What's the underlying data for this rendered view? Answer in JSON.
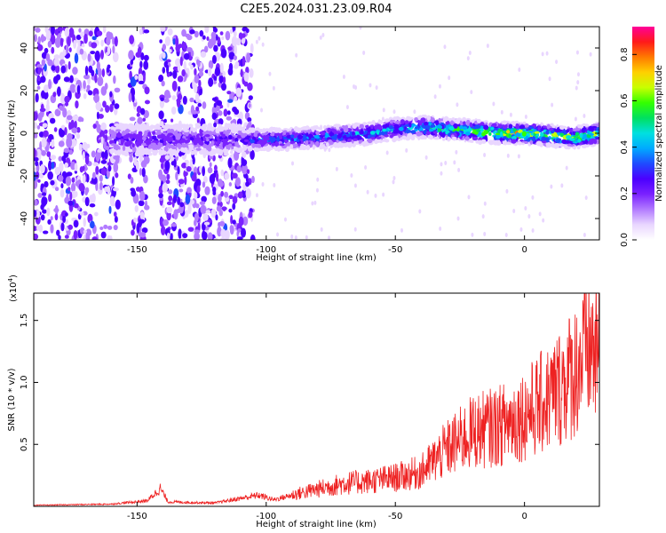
{
  "title": "C2E5.2024.031.23.09.R04",
  "colors": {
    "snr_line": "#ee2222",
    "spectrogram_palette": [
      "#ffffff",
      "#e9d6ff",
      "#b27bff",
      "#7a22ff",
      "#4b00ff",
      "#1f4bff",
      "#00aaff",
      "#00e0e0",
      "#00e060",
      "#33ff00",
      "#c8ff00",
      "#ffd000",
      "#ff7a00",
      "#ff1a1a",
      "#ff0099"
    ]
  },
  "chart_data": [
    {
      "type": "heatmap",
      "title": "",
      "xlabel": "Height of straight line (km)",
      "ylabel": "Frequency (Hz)",
      "xlim": [
        -190,
        29
      ],
      "ylim": [
        -50,
        50
      ],
      "xticks": [
        -150,
        -100,
        -50,
        0
      ],
      "xtick_labels": [
        "-150",
        "-100",
        "-50",
        "0"
      ],
      "yticks": [
        -40,
        -20,
        0,
        20,
        40
      ],
      "ytick_labels": [
        "-40",
        "-20",
        "0",
        "20",
        "40"
      ],
      "colorbar": {
        "label": "Normalized spectral amplitude",
        "range": [
          0,
          0.92
        ],
        "ticks": [
          0.0,
          0.2,
          0.4,
          0.6,
          0.8
        ],
        "tick_labels": [
          "0.0",
          "0.2",
          "0.4",
          "0.6",
          "0.8"
        ]
      },
      "description_points": {
        "signal_band_center_hz": {
          "x": [
            -120,
            -100,
            -80,
            -60,
            -50,
            -40,
            -30,
            -20,
            -10,
            0,
            10,
            20,
            29
          ],
          "y": [
            -3,
            -3,
            -2,
            0,
            2,
            3,
            2,
            1,
            0,
            0,
            -1,
            -2,
            0
          ]
        },
        "signal_peak_amplitude": {
          "x": [
            -120,
            -100,
            -80,
            -60,
            -40,
            -20,
            0,
            29
          ],
          "y": [
            0.35,
            0.4,
            0.45,
            0.5,
            0.55,
            0.75,
            0.85,
            0.7
          ]
        }
      },
      "grid": false
    },
    {
      "type": "line",
      "title": "",
      "xlabel": "Height of straight line (km)",
      "ylabel": "SNR (10 * v/v)",
      "y_multiplier_label": "(x10",
      "y_multiplier_exponent": "4",
      "y_multiplier_close": ")",
      "xlim": [
        -190,
        29
      ],
      "ylim": [
        0,
        1.72
      ],
      "xticks": [
        -150,
        -100,
        -50,
        0
      ],
      "xtick_labels": [
        "-150",
        "-100",
        "-50",
        "0"
      ],
      "yticks": [
        0.5,
        1.0,
        1.5
      ],
      "ytick_labels": [
        "0.5",
        "1.0",
        "1.5"
      ],
      "series": [
        {
          "x": [
            -190,
            -160,
            -146,
            -141,
            -138,
            -120,
            -103,
            -97,
            -90,
            -80,
            -70,
            -60,
            -50,
            -40,
            -30,
            -20,
            -10,
            0,
            10,
            20,
            25,
            29
          ],
          "y": [
            0.01,
            0.02,
            0.05,
            0.16,
            0.04,
            0.03,
            0.1,
            0.06,
            0.1,
            0.15,
            0.2,
            0.22,
            0.25,
            0.3,
            0.5,
            0.65,
            0.7,
            0.8,
            0.95,
            1.2,
            1.4,
            1.3
          ]
        }
      ],
      "grid": false
    }
  ]
}
